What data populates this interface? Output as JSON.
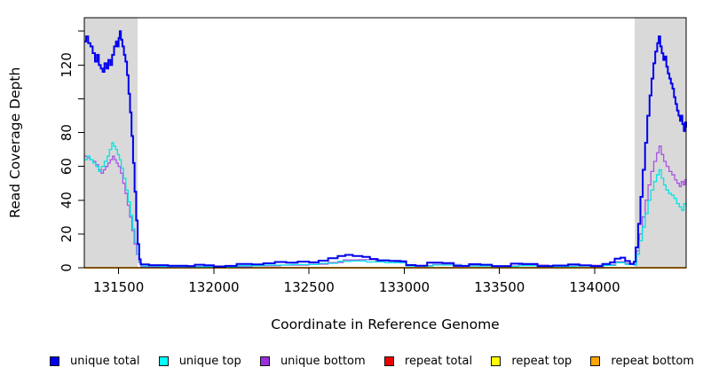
{
  "chart_data": {
    "type": "line",
    "title": "",
    "xlabel": "Coordinate in Reference Genome",
    "ylabel": "Read Coverage Depth",
    "xlim": [
      131320,
      134480
    ],
    "ylim": [
      0,
      148
    ],
    "x_ticks": [
      131500,
      132000,
      132500,
      133000,
      133500,
      134000
    ],
    "y_ticks": [
      {
        "v": 0,
        "label": "0"
      },
      {
        "v": 20,
        "label": "20"
      },
      {
        "v": 40,
        "label": "40"
      },
      {
        "v": 60,
        "label": "60"
      },
      {
        "v": 80,
        "label": "80"
      },
      {
        "v": 100,
        "label": ""
      },
      {
        "v": 120,
        "label": "120"
      },
      {
        "v": 140,
        "label": ""
      }
    ],
    "grid": false,
    "legend_position": "bottom",
    "shade_color": "#d9d9d9",
    "shaded_regions": [
      {
        "x0": 131320,
        "x1": 131600
      },
      {
        "x0": 134210,
        "x1": 134480
      }
    ],
    "series": [
      {
        "name": "unique total",
        "color": "#0000ee",
        "width": 2,
        "points": [
          [
            131320,
            134
          ],
          [
            131330,
            137
          ],
          [
            131340,
            133
          ],
          [
            131352,
            131
          ],
          [
            131364,
            127
          ],
          [
            131376,
            122
          ],
          [
            131386,
            126
          ],
          [
            131396,
            120
          ],
          [
            131406,
            118
          ],
          [
            131416,
            116
          ],
          [
            131426,
            121
          ],
          [
            131436,
            118
          ],
          [
            131446,
            123
          ],
          [
            131456,
            120
          ],
          [
            131466,
            126
          ],
          [
            131476,
            131
          ],
          [
            131486,
            134
          ],
          [
            131494,
            131
          ],
          [
            131500,
            136
          ],
          [
            131506,
            140
          ],
          [
            131512,
            135
          ],
          [
            131520,
            131
          ],
          [
            131528,
            126
          ],
          [
            131536,
            122
          ],
          [
            131544,
            114
          ],
          [
            131552,
            103
          ],
          [
            131560,
            92
          ],
          [
            131568,
            78
          ],
          [
            131576,
            62
          ],
          [
            131584,
            45
          ],
          [
            131592,
            28
          ],
          [
            131600,
            14
          ],
          [
            131608,
            5
          ],
          [
            131616,
            2
          ],
          [
            131660,
            1.5
          ],
          [
            131760,
            1.2
          ],
          [
            131860,
            1
          ],
          [
            131900,
            1.8
          ],
          [
            131950,
            1.4
          ],
          [
            132000,
            0.8
          ],
          [
            132060,
            1.1
          ],
          [
            132120,
            2.2
          ],
          [
            132200,
            2
          ],
          [
            132260,
            2.6
          ],
          [
            132320,
            3.4
          ],
          [
            132380,
            3
          ],
          [
            132440,
            3.6
          ],
          [
            132500,
            3.2
          ],
          [
            132550,
            4.2
          ],
          [
            132600,
            5.6
          ],
          [
            132650,
            7
          ],
          [
            132690,
            7.6
          ],
          [
            132730,
            7
          ],
          [
            132780,
            6.4
          ],
          [
            132820,
            5.2
          ],
          [
            132860,
            4.4
          ],
          [
            132920,
            4.1
          ],
          [
            132980,
            3.8
          ],
          [
            133010,
            1.6
          ],
          [
            133060,
            1.2
          ],
          [
            133120,
            3
          ],
          [
            133200,
            2.8
          ],
          [
            133260,
            1.1
          ],
          [
            133340,
            2.1
          ],
          [
            133400,
            1.8
          ],
          [
            133460,
            1
          ],
          [
            133560,
            2.4
          ],
          [
            133620,
            2.2
          ],
          [
            133700,
            1
          ],
          [
            133780,
            1.3
          ],
          [
            133860,
            2
          ],
          [
            133920,
            1.4
          ],
          [
            133980,
            1
          ],
          [
            134040,
            2.2
          ],
          [
            134080,
            3.2
          ],
          [
            134105,
            5.4
          ],
          [
            134135,
            6
          ],
          [
            134160,
            4
          ],
          [
            134185,
            2.2
          ],
          [
            134205,
            3.5
          ],
          [
            134215,
            12
          ],
          [
            134228,
            26
          ],
          [
            134240,
            42
          ],
          [
            134252,
            58
          ],
          [
            134264,
            74
          ],
          [
            134276,
            90
          ],
          [
            134288,
            102
          ],
          [
            134298,
            112
          ],
          [
            134308,
            121
          ],
          [
            134318,
            128
          ],
          [
            134328,
            133
          ],
          [
            134336,
            137
          ],
          [
            134344,
            131
          ],
          [
            134352,
            127
          ],
          [
            134360,
            123
          ],
          [
            134368,
            125
          ],
          [
            134376,
            119
          ],
          [
            134384,
            115
          ],
          [
            134392,
            112
          ],
          [
            134400,
            109
          ],
          [
            134408,
            106
          ],
          [
            134416,
            101
          ],
          [
            134424,
            97
          ],
          [
            134432,
            93
          ],
          [
            134440,
            90
          ],
          [
            134448,
            87
          ],
          [
            134454,
            90
          ],
          [
            134460,
            85
          ],
          [
            134468,
            81
          ],
          [
            134474,
            86
          ],
          [
            134480,
            83
          ]
        ]
      },
      {
        "name": "unique top",
        "color": "#00e5e5",
        "width": 1.3,
        "points": [
          [
            131320,
            64
          ],
          [
            131335,
            66
          ],
          [
            131350,
            64
          ],
          [
            131365,
            62
          ],
          [
            131380,
            60
          ],
          [
            131395,
            57
          ],
          [
            131410,
            60
          ],
          [
            131425,
            63
          ],
          [
            131440,
            66
          ],
          [
            131452,
            70
          ],
          [
            131464,
            74
          ],
          [
            131474,
            72
          ],
          [
            131484,
            70
          ],
          [
            131494,
            67
          ],
          [
            131504,
            64
          ],
          [
            131514,
            59
          ],
          [
            131526,
            53
          ],
          [
            131538,
            46
          ],
          [
            131550,
            39
          ],
          [
            131562,
            31
          ],
          [
            131574,
            23
          ],
          [
            131586,
            15
          ],
          [
            131598,
            8
          ],
          [
            131610,
            3
          ],
          [
            131620,
            1
          ],
          [
            131720,
            0.8
          ],
          [
            131860,
            0.5
          ],
          [
            132000,
            0.4
          ],
          [
            132120,
            1.2
          ],
          [
            132260,
            1.6
          ],
          [
            132400,
            1.9
          ],
          [
            132550,
            2.6
          ],
          [
            132650,
            3.8
          ],
          [
            132720,
            4
          ],
          [
            132800,
            3.4
          ],
          [
            132900,
            3
          ],
          [
            133010,
            1
          ],
          [
            133150,
            1.6
          ],
          [
            133300,
            1
          ],
          [
            133460,
            0.8
          ],
          [
            133600,
            1.2
          ],
          [
            133760,
            0.8
          ],
          [
            133900,
            1
          ],
          [
            134050,
            1.4
          ],
          [
            134110,
            3
          ],
          [
            134160,
            2
          ],
          [
            134205,
            1.6
          ],
          [
            134220,
            8
          ],
          [
            134235,
            16
          ],
          [
            134250,
            24
          ],
          [
            134265,
            32
          ],
          [
            134280,
            40
          ],
          [
            134295,
            46
          ],
          [
            134310,
            51
          ],
          [
            134325,
            55
          ],
          [
            134338,
            58
          ],
          [
            134350,
            53
          ],
          [
            134362,
            49
          ],
          [
            134374,
            46
          ],
          [
            134388,
            44
          ],
          [
            134402,
            43
          ],
          [
            134416,
            41
          ],
          [
            134430,
            38
          ],
          [
            134444,
            36
          ],
          [
            134456,
            34
          ],
          [
            134468,
            38
          ],
          [
            134480,
            36
          ]
        ]
      },
      {
        "name": "unique bottom",
        "color": "#a855e0",
        "width": 1.3,
        "points": [
          [
            131320,
            66
          ],
          [
            131335,
            65
          ],
          [
            131350,
            64
          ],
          [
            131365,
            63
          ],
          [
            131380,
            61
          ],
          [
            131395,
            58
          ],
          [
            131408,
            56
          ],
          [
            131420,
            58
          ],
          [
            131432,
            60
          ],
          [
            131444,
            62
          ],
          [
            131456,
            64
          ],
          [
            131468,
            66
          ],
          [
            131478,
            64
          ],
          [
            131488,
            62
          ],
          [
            131498,
            60
          ],
          [
            131510,
            56
          ],
          [
            131522,
            50
          ],
          [
            131534,
            44
          ],
          [
            131546,
            37
          ],
          [
            131558,
            30
          ],
          [
            131570,
            22
          ],
          [
            131582,
            14
          ],
          [
            131594,
            8
          ],
          [
            131606,
            3
          ],
          [
            131618,
            0.6
          ],
          [
            131760,
            0.5
          ],
          [
            131900,
            0.7
          ],
          [
            132050,
            0.5
          ],
          [
            132200,
            1.1
          ],
          [
            132350,
            1.6
          ],
          [
            132500,
            2.1
          ],
          [
            132600,
            3.1
          ],
          [
            132680,
            4.6
          ],
          [
            132760,
            4.8
          ],
          [
            132850,
            4.1
          ],
          [
            132950,
            3.4
          ],
          [
            133010,
            1.3
          ],
          [
            133150,
            1.9
          ],
          [
            133300,
            1.2
          ],
          [
            133460,
            1
          ],
          [
            133600,
            1.6
          ],
          [
            133760,
            1
          ],
          [
            133900,
            1.4
          ],
          [
            134050,
            1.9
          ],
          [
            134110,
            3.6
          ],
          [
            134160,
            2.6
          ],
          [
            134205,
            2.1
          ],
          [
            134220,
            10
          ],
          [
            134235,
            20
          ],
          [
            134250,
            30
          ],
          [
            134265,
            40
          ],
          [
            134280,
            49
          ],
          [
            134295,
            57
          ],
          [
            134310,
            63
          ],
          [
            134325,
            68
          ],
          [
            134338,
            72
          ],
          [
            134350,
            67
          ],
          [
            134362,
            63
          ],
          [
            134375,
            60
          ],
          [
            134390,
            57
          ],
          [
            134405,
            55
          ],
          [
            134420,
            52
          ],
          [
            134432,
            50
          ],
          [
            134444,
            48
          ],
          [
            134454,
            51
          ],
          [
            134464,
            49
          ],
          [
            134472,
            52
          ],
          [
            134480,
            49
          ]
        ]
      },
      {
        "name": "repeat total",
        "color": "#ee0000",
        "width": 1.3,
        "points": [
          [
            131320,
            0
          ],
          [
            134480,
            0
          ]
        ]
      },
      {
        "name": "repeat top",
        "color": "#ffff00",
        "width": 1.3,
        "points": [
          [
            131320,
            0
          ],
          [
            134480,
            0
          ]
        ]
      },
      {
        "name": "repeat bottom",
        "color": "#ffa500",
        "width": 2,
        "points": [
          [
            131320,
            0
          ],
          [
            134480,
            0
          ]
        ]
      }
    ]
  },
  "legend": {
    "items": [
      {
        "label": "unique total"
      },
      {
        "label": "unique top"
      },
      {
        "label": "unique bottom"
      },
      {
        "label": "repeat total"
      },
      {
        "label": "repeat top"
      },
      {
        "label": "repeat bottom"
      }
    ]
  }
}
